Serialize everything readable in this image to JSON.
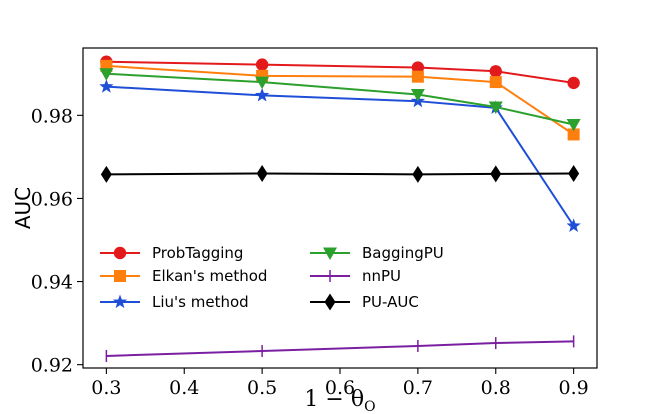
{
  "chart_data": {
    "type": "line",
    "title": "",
    "xlabel": "1 − θ",
    "xlabel_subscript": "O",
    "ylabel": "AUC",
    "x": [
      0.3,
      0.5,
      0.7,
      0.8,
      0.9
    ],
    "xlim": [
      0.27,
      0.93
    ],
    "ylim": [
      0.9192,
      0.9962
    ],
    "xticks": [
      "0.3",
      "0.4",
      "0.5",
      "0.6",
      "0.7",
      "0.8",
      "0.9"
    ],
    "yticks": [
      "0.92",
      "0.94",
      "0.96",
      "0.98"
    ],
    "grid": false,
    "legend": "lower-left",
    "series": [
      {
        "name": "ProbTagging",
        "color": "#e31a1c",
        "marker": "circle",
        "values": [
          0.9929,
          0.9922,
          0.9915,
          0.9906,
          0.9878
        ]
      },
      {
        "name": "Elkan's method",
        "color": "#ff7f0e",
        "marker": "square",
        "values": [
          0.9919,
          0.9895,
          0.9893,
          0.988,
          0.9754
        ]
      },
      {
        "name": "Liu's method",
        "color": "#1f4fd6",
        "marker": "star",
        "values": [
          0.9869,
          0.9848,
          0.9834,
          0.9818,
          0.9534
        ]
      },
      {
        "name": "BaggingPU",
        "color": "#2ca02c",
        "marker": "triangle-down",
        "values": [
          0.99,
          0.988,
          0.985,
          0.982,
          0.9778
        ]
      },
      {
        "name": "nnPU",
        "color": "#7b1fa2",
        "marker": "vline",
        "values": [
          0.9221,
          0.9233,
          0.9245,
          0.9252,
          0.9256
        ]
      },
      {
        "name": "PU-AUC",
        "color": "#000000",
        "marker": "diamond",
        "values": [
          0.9658,
          0.966,
          0.9658,
          0.9659,
          0.966
        ]
      }
    ]
  }
}
